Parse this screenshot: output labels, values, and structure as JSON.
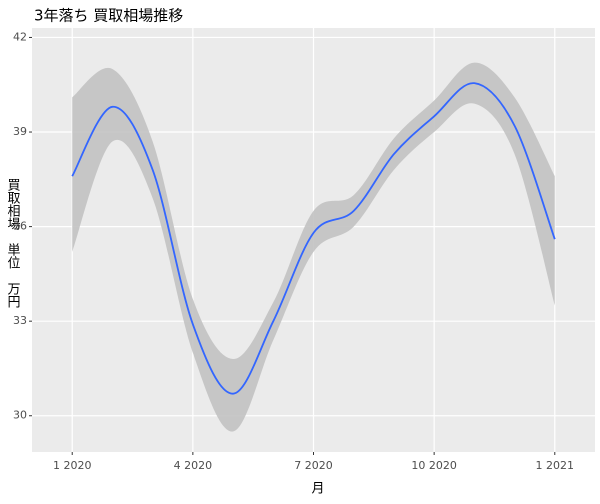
{
  "chart_data": {
    "type": "smooth",
    "title": "3年落ち 買取相場推移",
    "x_label": "月",
    "y_label": "買取相場　単位　万円",
    "x": [
      "2020-01",
      "2020-02",
      "2020-03",
      "2020-04",
      "2020-05",
      "2020-06",
      "2020-07",
      "2020-08",
      "2020-09",
      "2020-10",
      "2020-11",
      "2020-12",
      "2021-01"
    ],
    "values": [
      37.6,
      39.8,
      37.8,
      32.9,
      30.7,
      33.0,
      35.8,
      36.5,
      38.3,
      39.5,
      40.55,
      39.2,
      35.6
    ],
    "lower": [
      35.2,
      38.7,
      36.9,
      32.0,
      29.5,
      32.4,
      35.2,
      36.0,
      37.8,
      39.0,
      39.9,
      38.3,
      33.5
    ],
    "upper": [
      40.1,
      41.0,
      38.7,
      33.7,
      31.8,
      33.6,
      36.5,
      37.0,
      38.8,
      40.0,
      41.2,
      40.1,
      37.6
    ],
    "color": "#3366ff",
    "band_color": "#c2c2c2",
    "xlim": [
      "2019-12",
      "2021-02"
    ],
    "xticks": [
      {
        "value": "2020-01",
        "label": "1 2020"
      },
      {
        "value": "2020-04",
        "label": "4 2020"
      },
      {
        "value": "2020-07",
        "label": "7 2020"
      },
      {
        "value": "2020-10",
        "label": "10 2020"
      },
      {
        "value": "2021-01",
        "label": "1 2021"
      }
    ],
    "ylim": [
      28.85,
      42.3
    ],
    "yticks": [
      30,
      33,
      36,
      39,
      42
    ],
    "grid": true
  }
}
